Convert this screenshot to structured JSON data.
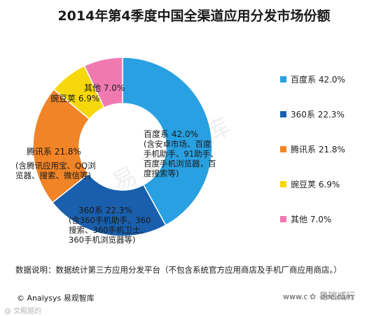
{
  "title": "2014年第4季度中国全渠道应用分发市场份额",
  "chart_data": {
    "type": "pie",
    "variant": "donut",
    "title": "2014年第4季度中国全渠道应用分发市场份额",
    "unit": "%",
    "slices": [
      {
        "name": "百度系",
        "value": 42.0,
        "color": "#29a0e1",
        "legend_text": "百度系 42.0%",
        "label_lines": [
          "百度系 42.0%",
          "(含安卓市场、百度",
          "手机助手、91助手、",
          "百度手机浏览器，百",
          "度搜索等)"
        ]
      },
      {
        "name": "360系",
        "value": 22.3,
        "color": "#1a5fad",
        "legend_text": "360系 22.3%",
        "label_lines": [
          "360系 22.3%",
          "(含360手机助手、360",
          "搜索、360手机卫士、",
          "360手机浏览器等)"
        ]
      },
      {
        "name": "腾讯系",
        "value": 21.8,
        "color": "#f08427",
        "legend_text": "腾讯系 21.8%",
        "label_lines": [
          "腾讯系 21.8%",
          "(含腾讯应用宝、QQ浏",
          "览器、搜索、微信等)"
        ]
      },
      {
        "name": "豌豆荚",
        "value": 6.9,
        "color": "#f6d70b",
        "legend_text": "豌豆荚 6.9%",
        "label_lines": [
          "豌豆荚 6.9%"
        ]
      },
      {
        "name": "其他",
        "value": 7.0,
        "color": "#f07ab0",
        "legend_text": "其他 7.0%",
        "label_lines": [
          "其他 7.0%"
        ]
      }
    ],
    "legend_position": "right"
  },
  "note": "数据说明：数据统计第三方应用分发平台（不包含系统官方应用商店及手机厂商应用商店。）",
  "footer": {
    "copyright": "© Analysys 易观智库",
    "website": "www.c",
    "website_tail": "dec.com",
    "source_mark": "易瑞威行",
    "corner": "@ 文殿题的"
  },
  "watermark": "易观智库"
}
